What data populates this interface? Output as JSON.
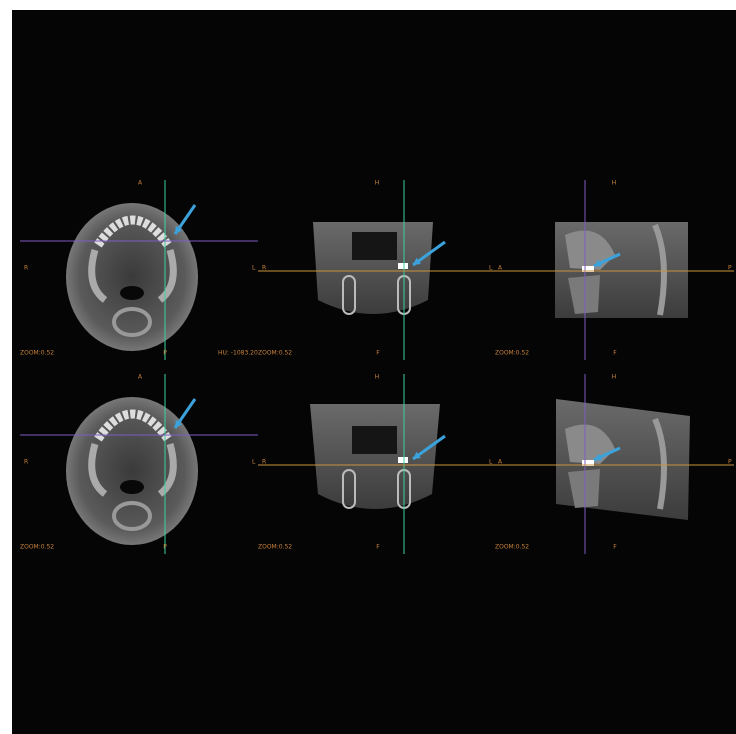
{
  "panels": [
    {
      "labels": {
        "top": "A",
        "left": "R",
        "right": "L",
        "bottom": "P",
        "zoom": "ZOOM:0.52",
        "hu": "HU: -1083.20"
      }
    },
    {
      "labels": {
        "top": "H",
        "left": "R",
        "right": "L",
        "bottom": "F",
        "zoom": "ZOOM:0.52"
      }
    },
    {
      "labels": {
        "top": "H",
        "left": "A",
        "right": "P",
        "bottom": "F",
        "zoom": "ZOOM:0.52"
      }
    },
    {
      "labels": {
        "top": "A",
        "left": "R",
        "right": "L",
        "bottom": "P",
        "zoom": "ZOOM:0.52"
      }
    },
    {
      "labels": {
        "top": "H",
        "left": "R",
        "right": "L",
        "bottom": "F",
        "zoom": "ZOOM:0.52"
      }
    },
    {
      "labels": {
        "top": "H",
        "left": "A",
        "right": "P",
        "bottom": "F",
        "zoom": "ZOOM:0.52"
      }
    }
  ]
}
